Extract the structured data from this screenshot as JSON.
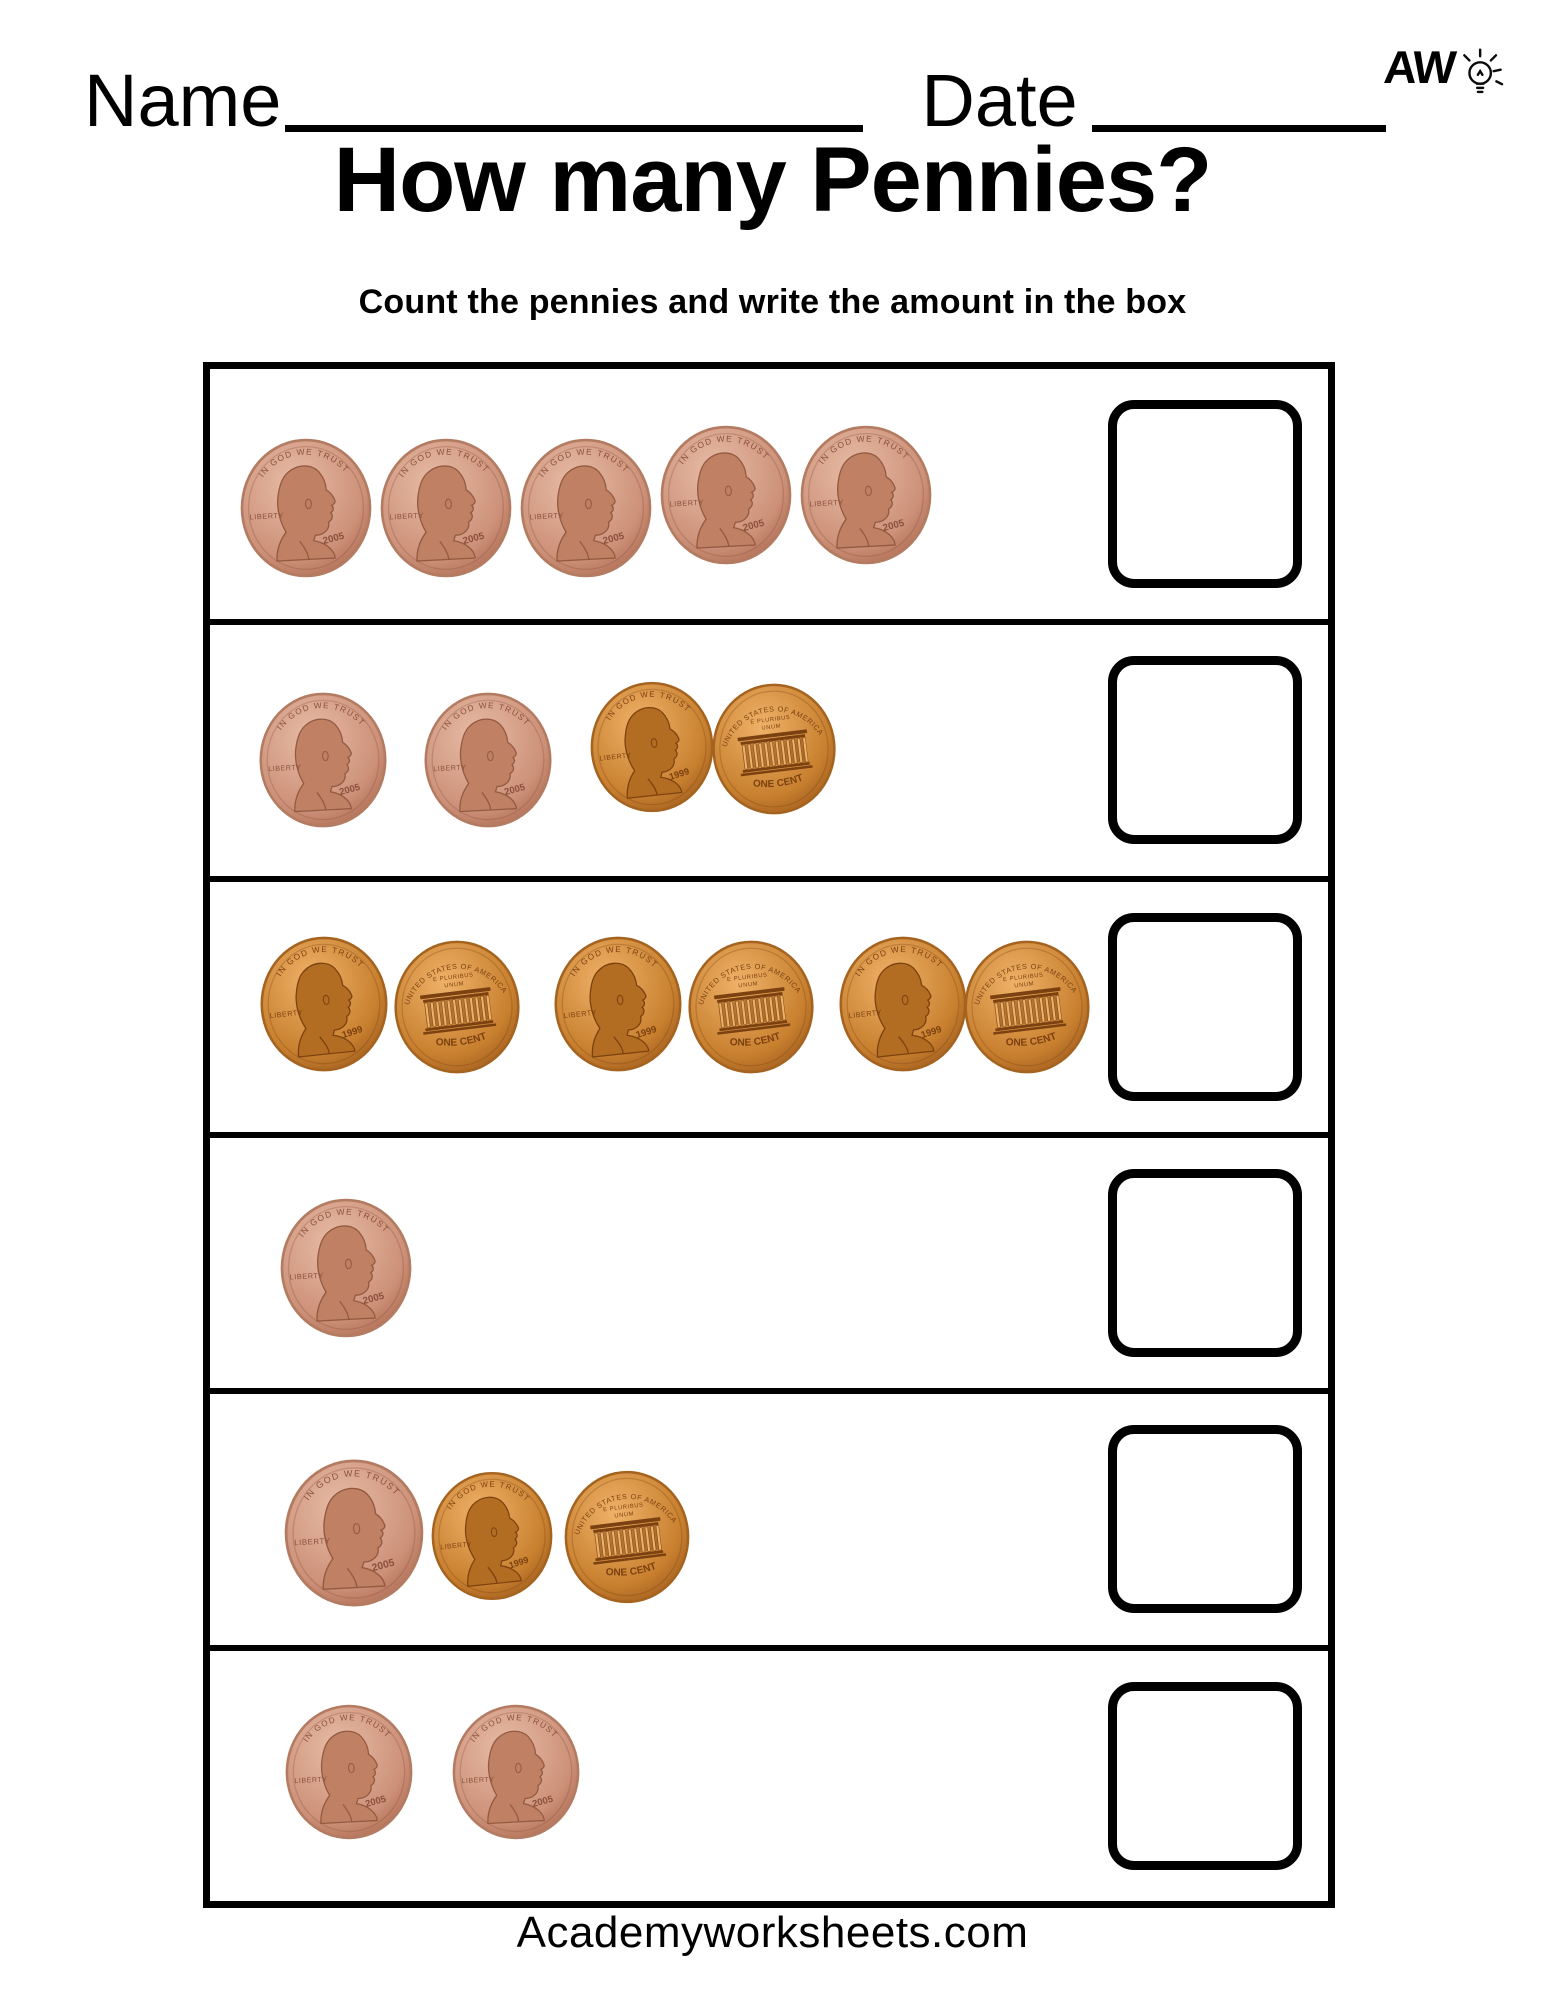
{
  "header": {
    "logo_text": "AW",
    "name_label": "Name",
    "date_label": "Date",
    "title": "How many Pennies?",
    "subtitle": "Count the pennies and write the amount in the box"
  },
  "coin_text": {
    "heads_motto": "IN GOD WE TRUST",
    "heads_liberty": "LIBERTY",
    "pink_year": "2005",
    "orange_year": "1999",
    "tails_country": "UNITED STATES OF AMERICA",
    "tails_motto_line1": "E PLURIBUS",
    "tails_motto_line2": "UNUM",
    "tails_denomination": "ONE CENT"
  },
  "rows": [
    {
      "penny_count": 5,
      "answer_value": "",
      "coins": [
        "heads-pink",
        "heads-pink",
        "heads-pink",
        "heads-pink",
        "heads-pink"
      ]
    },
    {
      "penny_count": 4,
      "answer_value": "",
      "coins": [
        "heads-pink",
        "heads-pink",
        "heads-orange",
        "tails-orange"
      ]
    },
    {
      "penny_count": 6,
      "answer_value": "",
      "coins": [
        "heads-orange",
        "tails-orange",
        "heads-orange",
        "tails-orange",
        "heads-orange",
        "tails-orange"
      ]
    },
    {
      "penny_count": 1,
      "answer_value": "",
      "coins": [
        "heads-pink"
      ]
    },
    {
      "penny_count": 3,
      "answer_value": "",
      "coins": [
        "heads-pink",
        "heads-orange",
        "tails-orange"
      ]
    },
    {
      "penny_count": 2,
      "answer_value": "",
      "coins": [
        "heads-pink",
        "heads-pink"
      ]
    }
  ],
  "footer": {
    "site": "Academyworksheets.com"
  },
  "colors": {
    "ink": "#000000",
    "paper": "#ffffff",
    "pink_penny": "#cd9179",
    "orange_penny": "#c8802f"
  }
}
